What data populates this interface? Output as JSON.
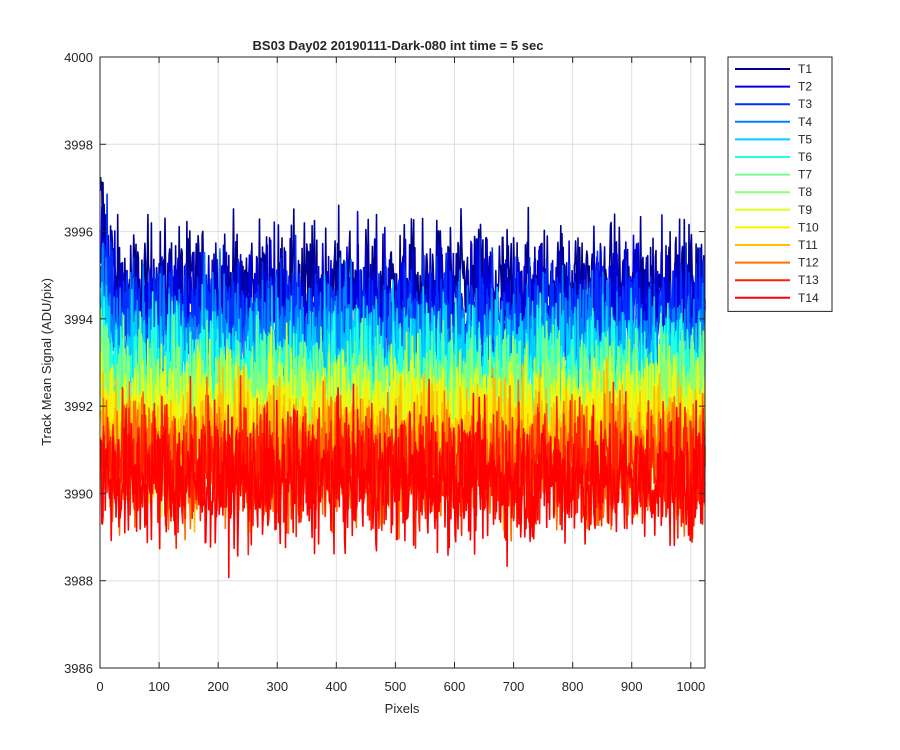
{
  "chart_data": {
    "type": "line",
    "title": "BS03 Day02 20190111-Dark-080 int time = 5 sec",
    "xlabel": "Pixels",
    "ylabel": "Track Mean Signal (ADU/pix)",
    "xlim": [
      0,
      1024
    ],
    "ylim": [
      3986,
      4000
    ],
    "xticks": [
      0,
      100,
      200,
      300,
      400,
      500,
      600,
      700,
      800,
      900,
      1000
    ],
    "yticks": [
      3986,
      3988,
      3990,
      3992,
      3994,
      3996,
      3998,
      4000
    ],
    "grid": true,
    "legend_position": "outside-top-right",
    "n_points": 1024,
    "series": [
      {
        "name": "T1",
        "color": "#00008f",
        "mean": 3994.7,
        "noise": 0.75
      },
      {
        "name": "T2",
        "color": "#0000df",
        "mean": 3994.3,
        "noise": 0.75
      },
      {
        "name": "T3",
        "color": "#0030ff",
        "mean": 3993.9,
        "noise": 0.75
      },
      {
        "name": "T4",
        "color": "#0080ff",
        "mean": 3993.4,
        "noise": 0.75
      },
      {
        "name": "T5",
        "color": "#00cfff",
        "mean": 3993.0,
        "noise": 0.75
      },
      {
        "name": "T6",
        "color": "#20ffdf",
        "mean": 3992.6,
        "noise": 0.75
      },
      {
        "name": "T7",
        "color": "#70ff8f",
        "mean": 3992.3,
        "noise": 0.75
      },
      {
        "name": "T8",
        "color": "#90ff70",
        "mean": 3992.0,
        "noise": 0.75
      },
      {
        "name": "T9",
        "color": "#dfff20",
        "mean": 3991.7,
        "noise": 0.75
      },
      {
        "name": "T10",
        "color": "#ffef00",
        "mean": 3991.4,
        "noise": 0.75
      },
      {
        "name": "T11",
        "color": "#ffbf00",
        "mean": 3991.1,
        "noise": 0.75
      },
      {
        "name": "T12",
        "color": "#ff7000",
        "mean": 3990.8,
        "noise": 0.75
      },
      {
        "name": "T13",
        "color": "#ff2000",
        "mean": 3990.6,
        "noise": 0.75
      },
      {
        "name": "T14",
        "color": "#ff0000",
        "mean": 3990.3,
        "noise": 0.75
      }
    ]
  }
}
